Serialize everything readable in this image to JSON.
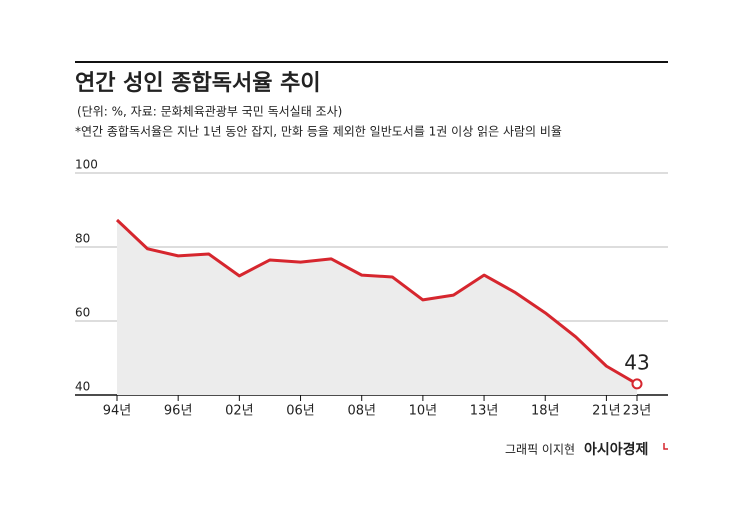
{
  "chart_data": {
    "type": "area",
    "title": "연간 성인 종합독서율 추이",
    "subtitle": "(단위: %, 자료: 문화체육관광부 국민 독서실태 조사)",
    "note": "*연간 종합독서율은 지난 1년 동안 잡지, 만화 등을 제외한 일반도서를 1권 이상 읽은 사람의 비율",
    "credit": "그래픽 이지현",
    "logo": "아시아경제",
    "categories": [
      "94년",
      null,
      "96년",
      null,
      "02년",
      null,
      "06년",
      null,
      "08년",
      null,
      "10년",
      null,
      "13년",
      null,
      "18년",
      null,
      "21년",
      "23년"
    ],
    "values": [
      87.3,
      79.5,
      77.6,
      78.1,
      72.2,
      76.5,
      75.9,
      76.8,
      72.4,
      71.9,
      65.7,
      67.0,
      72.4,
      67.8,
      62.2,
      55.7,
      47.8,
      43
    ],
    "color": "#d6262e",
    "fill": "#ececec",
    "ylim": [
      40,
      100
    ],
    "yticks": [
      40,
      60,
      80,
      100
    ],
    "grid": true
  }
}
